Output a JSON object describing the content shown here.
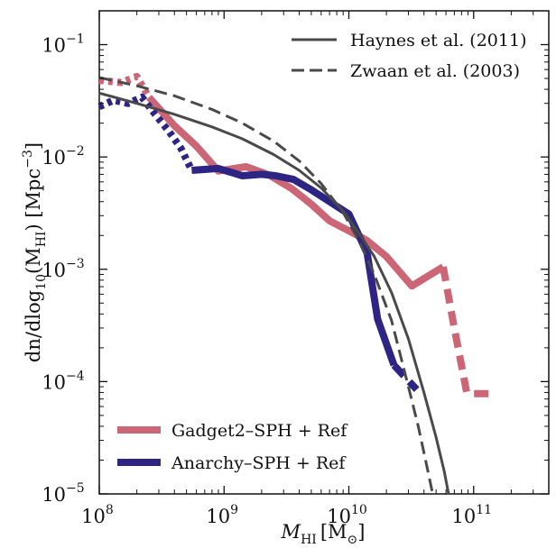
{
  "chart_data": {
    "type": "line",
    "title": "",
    "xlabel": {
      "main": "M",
      "sub": "HI",
      "units": "[M",
      "units_sub": "⊙",
      "units_end": "]"
    },
    "ylabel": {
      "prefix": "dn/dlog",
      "sub10": "10",
      "mid": "(M",
      "sub": "HI",
      "end": ") [Mpc",
      "sup": "−3",
      "close": "]"
    },
    "x_scale": "log",
    "y_scale": "log",
    "xlim": [
      100000000.0,
      400000000000.0
    ],
    "ylim": [
      1e-05,
      0.2
    ],
    "x_ticks": [
      {
        "value": 100000000.0,
        "base": "10",
        "exp": "8"
      },
      {
        "value": 1000000000.0,
        "base": "10",
        "exp": "9"
      },
      {
        "value": 10000000000.0,
        "base": "10",
        "exp": "10"
      },
      {
        "value": 100000000000.0,
        "base": "10",
        "exp": "11"
      }
    ],
    "y_ticks": [
      {
        "value": 0.1,
        "base": "10",
        "exp": "−1"
      },
      {
        "value": 0.01,
        "base": "10",
        "exp": "−2"
      },
      {
        "value": 0.001,
        "base": "10",
        "exp": "−3"
      },
      {
        "value": 0.0001,
        "base": "10",
        "exp": "−4"
      },
      {
        "value": 1e-05,
        "base": "10",
        "exp": "−5"
      }
    ],
    "legend_top": {
      "placement": "top-right",
      "entries": [
        "Haynes et al. (2011)",
        "Zwaan et al. (2003)"
      ]
    },
    "legend_bottom": {
      "placement": "bottom-left",
      "entries": [
        "Gadget2–SPH + Ref",
        "Anarchy–SPH + Ref"
      ]
    },
    "series": [
      {
        "name": "Haynes et al. (2011)",
        "color": "#4a4a4a",
        "style": "solid",
        "x": [
          100000000.0,
          200000000.0,
          400000000.0,
          800000000.0,
          1400000000.0,
          2500000000.0,
          4000000000.0,
          6000000000.0,
          9000000000.0,
          12000000000.0,
          16000000000.0,
          22000000000.0,
          30000000000.0,
          40000000000.0,
          50000000000.0,
          58000000000.0,
          63000000000.0
        ],
        "y": [
          0.037,
          0.03,
          0.024,
          0.0185,
          0.0145,
          0.0105,
          0.0076,
          0.0053,
          0.0033,
          0.0021,
          0.0013,
          0.00062,
          0.00024,
          8e-05,
          3.2e-05,
          1.6e-05,
          1e-05
        ]
      },
      {
        "name": "Zwaan et al. (2003)",
        "color": "#4a4a4a",
        "style": "dashed",
        "x": [
          100000000.0,
          200000000.0,
          400000000.0,
          800000000.0,
          1400000000.0,
          2500000000.0,
          4000000000.0,
          6000000000.0,
          9000000000.0,
          12000000000.0,
          16000000000.0,
          22000000000.0,
          30000000000.0,
          36000000000.0,
          42000000000.0,
          47000000000.0
        ],
        "y": [
          0.051,
          0.043,
          0.035,
          0.0265,
          0.02,
          0.0138,
          0.0092,
          0.0058,
          0.0032,
          0.0018,
          0.0009,
          0.00035,
          9e-05,
          4e-05,
          1.8e-05,
          1e-05
        ]
      },
      {
        "name": "Gadget2–SPH + Ref",
        "color": "#cc6677",
        "segments": [
          {
            "style": "dotted",
            "x": [
              100000000.0,
              150000000.0,
              200000000.0,
              250000000.0
            ],
            "y": [
              0.048,
              0.046,
              0.052,
              0.034
            ]
          },
          {
            "style": "solid",
            "x": [
              250000000.0,
              400000000.0,
              600000000.0,
              900000000.0,
              1500000000.0,
              2300000000.0,
              3500000000.0,
              5000000000.0,
              7000000000.0,
              10000000000.0,
              14000000000.0,
              20000000000.0,
              32000000000.0,
              57000000000.0
            ],
            "y": [
              0.034,
              0.019,
              0.0125,
              0.0075,
              0.0082,
              0.0069,
              0.0052,
              0.0038,
              0.0027,
              0.0022,
              0.0018,
              0.0013,
              0.00071,
              0.00105
            ]
          },
          {
            "style": "dashed",
            "x": [
              57000000000.0,
              70000000000.0,
              88000000000.0,
              100000000000.0,
              145000000000.0
            ],
            "y": [
              0.00105,
              0.0003,
              8e-05,
              7.8e-05,
              7.8e-05
            ]
          }
        ]
      },
      {
        "name": "Anarchy–SPH + Ref",
        "color": "#2e2483",
        "segments": [
          {
            "style": "dotted",
            "x": [
              100000000.0,
              130000000.0,
              170000000.0,
              220000000.0,
              280000000.0,
              360000000.0,
              450000000.0,
              550000000.0
            ],
            "y": [
              0.028,
              0.032,
              0.03,
              0.034,
              0.024,
              0.017,
              0.012,
              0.0076
            ]
          },
          {
            "style": "solid",
            "x": [
              550000000.0,
              900000000.0,
              1400000000.0,
              2000000000.0,
              2600000000.0,
              3600000000.0,
              5000000000.0,
              7000000000.0,
              10000000000.0,
              14000000000.0,
              17000000000.0,
              23000000000.0
            ],
            "y": [
              0.0076,
              0.0079,
              0.0068,
              0.007,
              0.0068,
              0.0063,
              0.0051,
              0.004,
              0.0031,
              0.0014,
              0.00036,
              0.00014
            ]
          },
          {
            "style": "dashed",
            "x": [
              23000000000.0,
              35000000000.0
            ],
            "y": [
              0.00014,
              8.5e-05
            ]
          }
        ]
      }
    ]
  }
}
